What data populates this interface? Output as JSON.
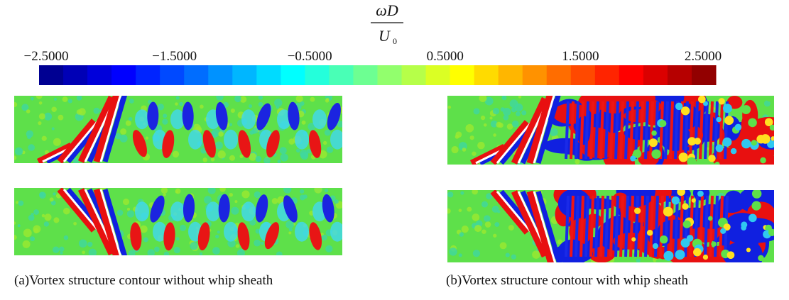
{
  "colorbar": {
    "label_numerator": "ωD",
    "label_denominator": "U",
    "label_denominator_subscript": "0",
    "tick_labels": [
      "−2.5000",
      "−1.5000",
      "−0.5000",
      "0.5000",
      "1.5000",
      "2.5000"
    ]
  },
  "captions": [
    "(a)Vortex structure contour without whip sheath",
    "(b)Vortex structure contour with whip sheath"
  ]
}
